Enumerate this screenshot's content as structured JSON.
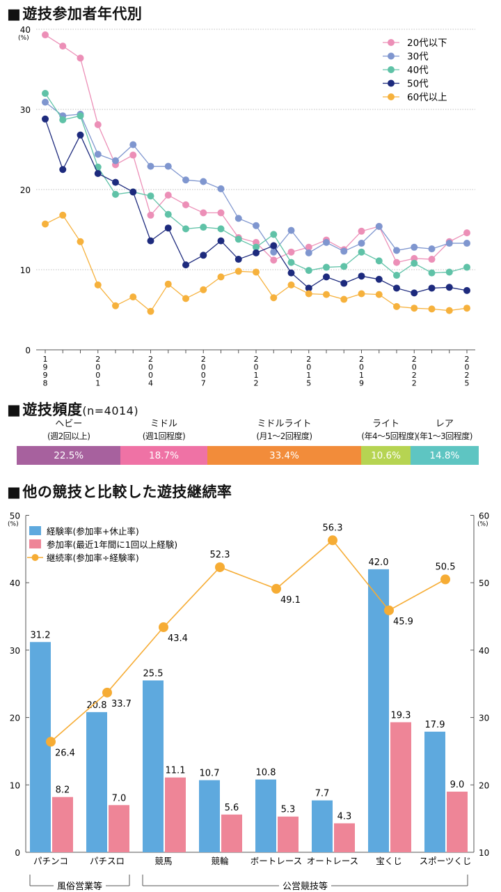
{
  "section1": {
    "title": "遊技参加者年代別",
    "marker": "■"
  },
  "section2": {
    "title": "遊技頻度",
    "marker": "■",
    "n_label": "(n=4014)"
  },
  "section3": {
    "title": "他の競技と比較した遊技継続率",
    "marker": "■"
  },
  "chart_data": [
    {
      "type": "line",
      "title": "遊技参加者年代別",
      "ylabel": "(%)",
      "ylim": [
        0,
        40
      ],
      "yticks": [
        0,
        10,
        20,
        30,
        40
      ],
      "grid": true,
      "legend_position": "top-right",
      "x_tick_labels": [
        {
          "index": 0,
          "text": "1998"
        },
        {
          "index": 3,
          "text": "2001"
        },
        {
          "index": 6,
          "text": "2004"
        },
        {
          "index": 9,
          "text": "2007"
        },
        {
          "index": 12,
          "text": "2012"
        },
        {
          "index": 15,
          "text": "2015"
        },
        {
          "index": 18,
          "text": "2019"
        },
        {
          "index": 21,
          "text": "2022"
        },
        {
          "index": 24,
          "text": "2025"
        }
      ],
      "series": [
        {
          "name": "20代以下",
          "color": "#ec8fb7",
          "values": [
            39.3,
            37.9,
            36.4,
            28.1,
            23.1,
            24.3,
            16.8,
            19.3,
            18.1,
            17.1,
            17.1,
            14.0,
            13.4,
            11.2,
            12.2,
            12.8,
            13.7,
            12.5,
            14.8,
            15.4,
            10.9,
            11.4,
            11.3,
            13.5,
            14.6
          ]
        },
        {
          "name": "30代",
          "color": "#7f96cf",
          "values": [
            30.9,
            29.2,
            29.4,
            24.4,
            23.6,
            25.6,
            22.9,
            22.9,
            21.2,
            21.0,
            20.1,
            16.4,
            15.5,
            12.2,
            14.9,
            12.1,
            13.4,
            12.3,
            13.3,
            15.4,
            12.4,
            12.8,
            12.6,
            13.3,
            13.3
          ]
        },
        {
          "name": "40代",
          "color": "#5fc2a7",
          "values": [
            32.0,
            28.7,
            29.2,
            22.8,
            19.4,
            19.7,
            19.2,
            16.9,
            15.1,
            15.3,
            15.1,
            13.8,
            12.8,
            14.4,
            10.9,
            9.9,
            10.3,
            10.4,
            12.2,
            11.1,
            9.3,
            10.8,
            9.6,
            9.7,
            10.3
          ]
        },
        {
          "name": "50代",
          "color": "#1d2a7d",
          "values": [
            28.8,
            22.5,
            26.8,
            22.0,
            20.9,
            19.7,
            13.6,
            15.2,
            10.6,
            11.8,
            13.6,
            11.3,
            12.1,
            13.0,
            9.6,
            7.7,
            9.1,
            8.3,
            9.2,
            8.8,
            7.7,
            7.1,
            7.7,
            7.8,
            7.4
          ]
        },
        {
          "name": "60代以上",
          "color": "#f6b13c",
          "values": [
            15.7,
            16.8,
            13.5,
            8.1,
            5.5,
            6.6,
            4.8,
            8.2,
            6.4,
            7.5,
            9.1,
            9.8,
            9.7,
            6.5,
            8.1,
            7.0,
            6.9,
            6.3,
            7.0,
            6.9,
            5.4,
            5.2,
            5.1,
            4.9,
            5.2
          ]
        }
      ]
    },
    {
      "type": "bar",
      "title": "遊技頻度",
      "orientation": "horizontal-stacked",
      "segments": [
        {
          "label": "ヘビー",
          "sub": "(週2回以上)",
          "value": 22.5,
          "text": "22.5%",
          "color": "#a7619e"
        },
        {
          "label": "ミドル",
          "sub": "(週1回程度)",
          "value": 18.7,
          "text": "18.7%",
          "color": "#ef72a5"
        },
        {
          "label": "ミドルライト",
          "sub": "(月1〜2回程度)",
          "value": 33.4,
          "text": "33.4%",
          "color": "#f28c3a"
        },
        {
          "label": "ライト",
          "sub": "(年4〜5回程度)",
          "value": 10.6,
          "text": "10.6%",
          "color": "#b6d452"
        },
        {
          "label": "レア",
          "sub": "(年1〜3回程度)",
          "value": 14.8,
          "text": "14.8%",
          "color": "#5ec5c2"
        }
      ]
    },
    {
      "type": "bar",
      "title": "他の競技と比較した遊技継続率",
      "categories": [
        "パチンコ",
        "パチスロ",
        "競馬",
        "競輪",
        "ボートレース",
        "オートレース",
        "宝くじ",
        "スポーツくじ"
      ],
      "ylabel_left": "(%)",
      "ylabel_right": "(%)",
      "ylim_left": [
        0,
        50
      ],
      "yticks_left": [
        0,
        10,
        20,
        30,
        40,
        50
      ],
      "ylim_right": [
        10,
        60
      ],
      "yticks_right": [
        10,
        20,
        30,
        40,
        50,
        60
      ],
      "legend_position": "top-left",
      "series": [
        {
          "name": "経験率(参加率+休止率)",
          "color": "#5ea9de",
          "axis": "left",
          "values": [
            31.2,
            20.8,
            25.5,
            10.7,
            10.8,
            7.7,
            42.0,
            17.9
          ],
          "labels": [
            "31.2",
            "20.8",
            "25.5",
            "10.7",
            "10.8",
            "7.7",
            "42.0",
            "17.9"
          ]
        },
        {
          "name": "参加率(最近1年間に1回以上経験)",
          "color": "#ee8597",
          "axis": "left",
          "values": [
            8.2,
            7.0,
            11.1,
            5.6,
            5.3,
            4.3,
            19.3,
            9.0
          ],
          "labels": [
            "8.2",
            "7.0",
            "11.1",
            "5.6",
            "5.3",
            "4.3",
            "19.3",
            "9.0"
          ]
        },
        {
          "name": "継続率(参加率÷経験率)",
          "color": "#f6ac34",
          "axis": "right",
          "type": "line",
          "values": [
            26.4,
            33.7,
            43.4,
            52.3,
            49.1,
            56.3,
            45.9,
            50.5
          ],
          "labels": [
            "26.4",
            "33.7",
            "43.4",
            "52.3",
            "49.1",
            "56.3",
            "45.9",
            "50.5"
          ]
        }
      ],
      "groups": [
        {
          "label": "風俗営業等",
          "from": 0,
          "to": 1
        },
        {
          "label": "公営競技等",
          "from": 2,
          "to": 7
        }
      ]
    }
  ]
}
